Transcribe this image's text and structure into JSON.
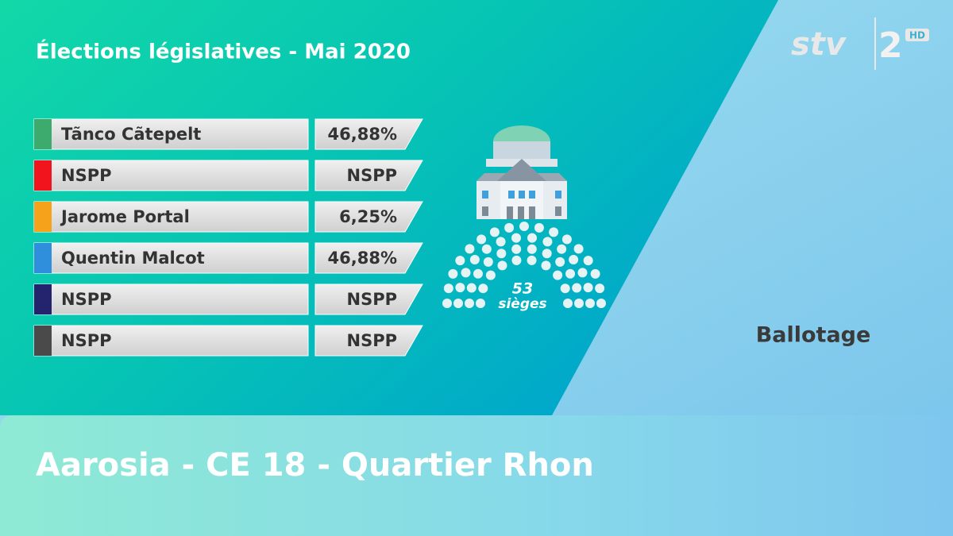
{
  "header": {
    "title": "Élections législatives - Mai 2020",
    "logo": "stv",
    "logo_number": "2",
    "logo_badge": "HD"
  },
  "results": {
    "rows": [
      {
        "name": "Tãnco Cãtepelt",
        "color": "#3dab6e",
        "result": "46,88%"
      },
      {
        "name": "NSPP",
        "color": "#f2141c",
        "result": "NSPP"
      },
      {
        "name": "Jarome Portal",
        "color": "#f7a21b",
        "result": "6,25%"
      },
      {
        "name": "Quentin Malcot",
        "color": "#2f8fdc",
        "result": "46,88%"
      },
      {
        "name": "NSPP",
        "color": "#23236e",
        "result": "NSPP"
      },
      {
        "name": "NSPP",
        "color": "#4a4a4a",
        "result": "NSPP"
      }
    ]
  },
  "parliament": {
    "seats": 53,
    "seats_label": "sièges"
  },
  "status": "Ballotage",
  "footer": {
    "location": "Aarosia - CE 18 - Quartier Rhon"
  }
}
